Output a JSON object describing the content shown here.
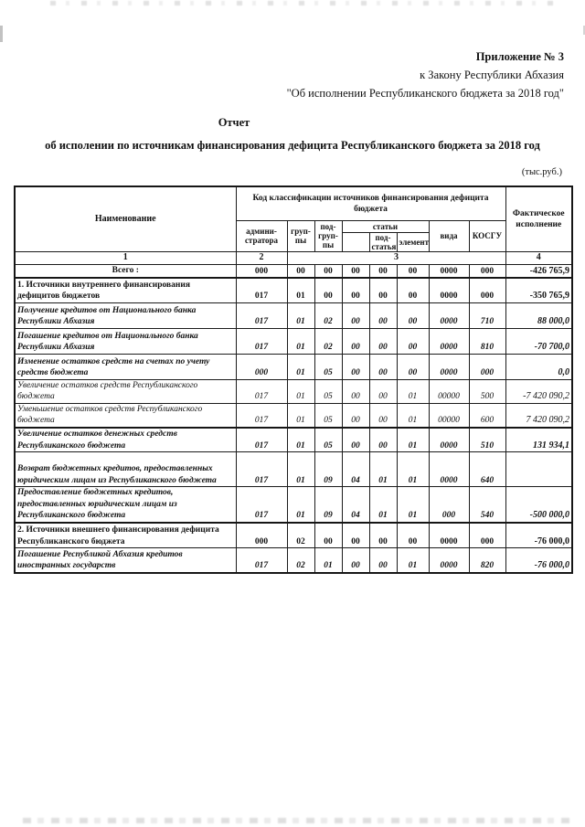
{
  "page": {
    "appendix": {
      "line1": "Приложение № 3",
      "line2": "к Закону Республики Абхазия",
      "line3": "\"Об исполнении Республиканского бюджета за 2018 год\""
    },
    "report": {
      "title": "Отчет",
      "subtitle": "об исполении по источникам финансирования дефицита Республиканского бюджета за 2018 год"
    },
    "units_note": "(тыс.руб.)"
  },
  "table": {
    "header": {
      "name": "Наименование",
      "code_group_title": "Код классификации источников финансирования дефицита бюджета",
      "columns": {
        "administrator": "админи-\nстратора",
        "group": "груп-\nпы",
        "subgroup": "под-\nгруп-\nпы",
        "articles_group": "статьи",
        "article_blank": "",
        "subarticle": "под-\nстатья",
        "element": "элемент",
        "vid": "вида",
        "kosgu": "КОСГУ"
      },
      "actual": "Фактическое\nисполнение",
      "index_row": [
        "1",
        "2",
        "3",
        "4"
      ]
    },
    "rows": [
      {
        "name": "Всего :",
        "style": "bold",
        "total": true,
        "codes": [
          "000",
          "00",
          "00",
          "00",
          "00",
          "00",
          "0000",
          "000"
        ],
        "value": "-426 765,9"
      },
      {
        "name": "1. Источники внутреннего финансирования\nдефицитов бюджетов",
        "style": "bold",
        "codes": [
          "017",
          "01",
          "00",
          "00",
          "00",
          "00",
          "0000",
          "000"
        ],
        "value": "-350 765,9"
      },
      {
        "name": "Получение кредитов от Национального банка\nРеспублики Абхазия",
        "style": "bold-italic",
        "codes": [
          "017",
          "01",
          "02",
          "00",
          "00",
          "00",
          "0000",
          "710"
        ],
        "value": "88 000,0"
      },
      {
        "name": "Погашение кредитов от Национального банка\nРеспублики Абхазия",
        "style": "bold-italic",
        "codes": [
          "017",
          "01",
          "02",
          "00",
          "00",
          "00",
          "0000",
          "810"
        ],
        "value": "-70 700,0"
      },
      {
        "name": "Изменение остатков средств на счетах по учету\nсредств бюджета",
        "style": "bold-italic",
        "codes": [
          "000",
          "01",
          "05",
          "00",
          "00",
          "00",
          "0000",
          "000"
        ],
        "value": "0,0"
      },
      {
        "name": "Увеличение остатков  средств Республиканского\nбюджета",
        "style": "italic",
        "codes": [
          "017",
          "01",
          "05",
          "00",
          "00",
          "01",
          "00000",
          "500"
        ],
        "value": "-7 420 090,2"
      },
      {
        "name": "Уменьшение остатков  средств Республиканского\nбюджета",
        "style": "italic",
        "codes": [
          "017",
          "01",
          "05",
          "00",
          "00",
          "01",
          "00000",
          "600"
        ],
        "value": "7 420 090,2"
      },
      {
        "name": "Увеличение остатков денежных  средств\nРеспубликанского бюджета",
        "style": "bold-italic",
        "thick_top": true,
        "codes": [
          "017",
          "01",
          "05",
          "00",
          "00",
          "01",
          "0000",
          "510"
        ],
        "value": "131 934,1"
      },
      {
        "name": "Возврат бюджетных кредитов, предоставленных\nюридическим лицам из Республиканского бюджета",
        "style": "bold-italic",
        "codes": [
          "017",
          "01",
          "09",
          "04",
          "01",
          "01",
          "0000",
          "640"
        ],
        "value": ""
      },
      {
        "name": "Предоставление бюджетных кредитов,\nпредоставленных юридическим лицам из\nРеспубликанского бюджета",
        "style": "bold-italic",
        "codes": [
          "017",
          "01",
          "09",
          "04",
          "01",
          "01",
          "000",
          "540"
        ],
        "value": "-500 000,0"
      },
      {
        "name": "2. Источники внешнего  финансирования дефицита\nРеспубликанского бюджета",
        "style": "bold",
        "thick_top": true,
        "codes": [
          "000",
          "02",
          "00",
          "00",
          "00",
          "00",
          "0000",
          "000"
        ],
        "value": "-76 000,0"
      },
      {
        "name": "Погашение Республикой Абхазия кредитов\nиностранных государств",
        "style": "bold-italic",
        "codes": [
          "017",
          "02",
          "01",
          "00",
          "00",
          "01",
          "0000",
          "820"
        ],
        "value": "-76 000,0"
      }
    ]
  },
  "colors": {
    "text": "#111111",
    "border": "#1b1b1b",
    "background": "#ffffff"
  }
}
